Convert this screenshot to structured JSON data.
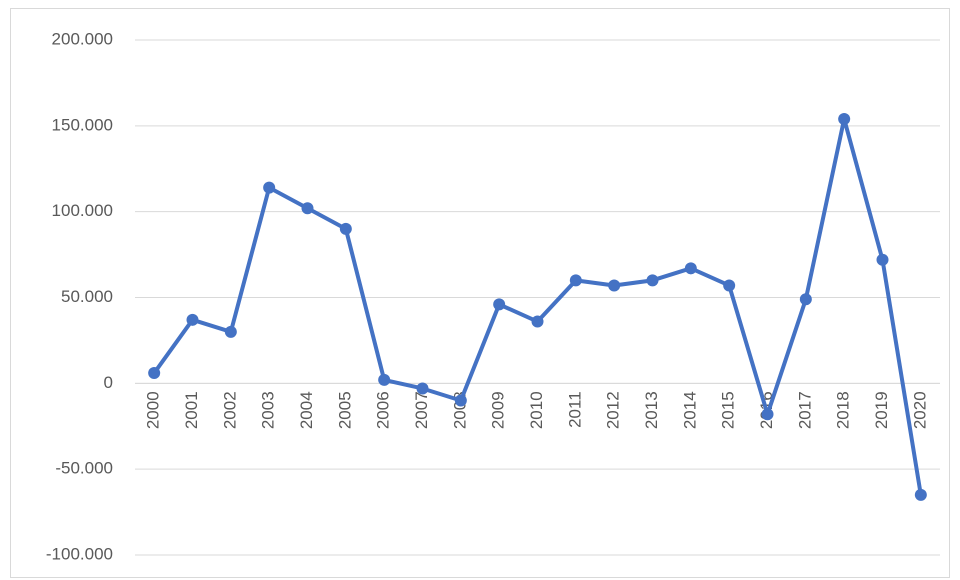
{
  "chart_data": {
    "type": "line",
    "categories": [
      "2000",
      "2001",
      "2002",
      "2003",
      "2004",
      "2005",
      "2006",
      "2007",
      "2008",
      "2009",
      "2010",
      "2011",
      "2012",
      "2013",
      "2014",
      "2015",
      "2016",
      "2017",
      "2018",
      "2019",
      "2020"
    ],
    "values": [
      6000,
      37000,
      30000,
      114000,
      102000,
      90000,
      2000,
      -3000,
      -10000,
      46000,
      36000,
      60000,
      57000,
      60000,
      67000,
      57000,
      -18000,
      49000,
      154000,
      72000,
      -65000
    ],
    "color": "#4472c4",
    "ylim": [
      -100000,
      200000
    ],
    "yticks": [
      {
        "value": -100000,
        "label": "-100.000"
      },
      {
        "value": -50000,
        "label": "-50.000"
      },
      0,
      {
        "value": 50000,
        "label": "50.000"
      },
      {
        "value": 100000,
        "label": "100.000"
      },
      {
        "value": 150000,
        "label": "150.000"
      },
      {
        "value": 200000,
        "label": "200.000"
      }
    ],
    "grid": true
  }
}
